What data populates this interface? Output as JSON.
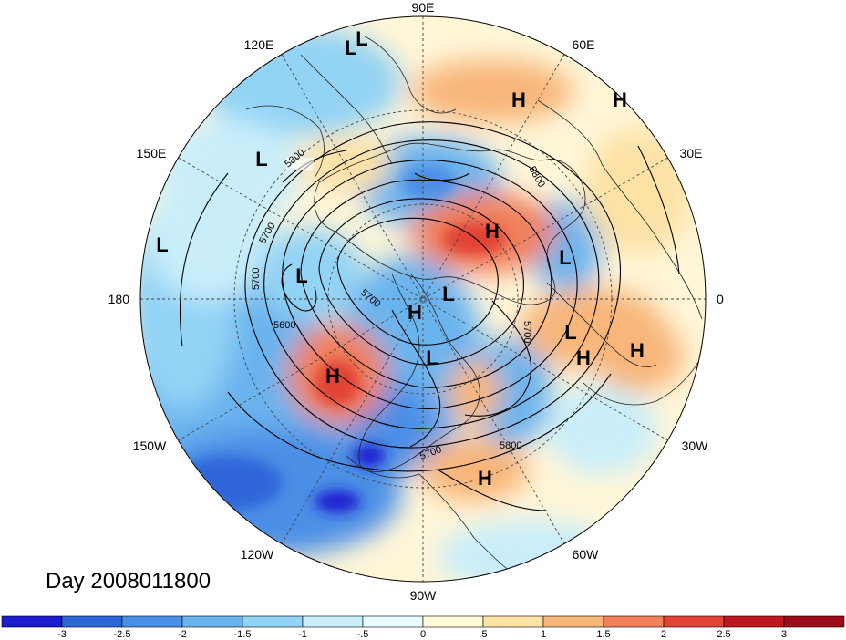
{
  "title": "Day 2008011800",
  "longitude_labels": [
    "90E",
    "60E",
    "30E",
    "0",
    "30W",
    "60W",
    "90W",
    "120W",
    "150W",
    "180",
    "150E",
    "120E"
  ],
  "contour_labels": [
    "5800",
    "5700",
    "5700",
    "5600",
    "5700",
    "5700",
    "5800",
    "5800",
    "5700"
  ],
  "pressure_centers": [
    {
      "type": "L",
      "name": "low-center"
    },
    {
      "type": "H",
      "name": "high-center"
    }
  ],
  "colorbar": {
    "ticks": [
      "-3",
      "-2.5",
      "-2",
      "-1.5",
      "-1",
      "-.5",
      "0",
      ".5",
      "1",
      "1.5",
      "2",
      "2.5",
      "3"
    ],
    "colors": [
      "#1b1bcf",
      "#2e66d9",
      "#4b8fe6",
      "#6bb4ee",
      "#93d3f5",
      "#c9eefa",
      "#e9fbfd",
      "#fffbd6",
      "#fde2a6",
      "#f8b67a",
      "#f1805b",
      "#e24336",
      "#c1161f",
      "#9d0a1a"
    ]
  },
  "chart_data": {
    "type": "heatmap",
    "projection": "north-polar-stereographic",
    "variable_range": [
      -3,
      3
    ],
    "contour_levels": [
      5600,
      5700,
      5800
    ],
    "pressure_centers": [
      "L",
      "L",
      "H",
      "H",
      "L",
      "H",
      "L",
      "L",
      "H",
      "L",
      "L",
      "L",
      "H",
      "H",
      "H",
      "L",
      "H"
    ]
  }
}
